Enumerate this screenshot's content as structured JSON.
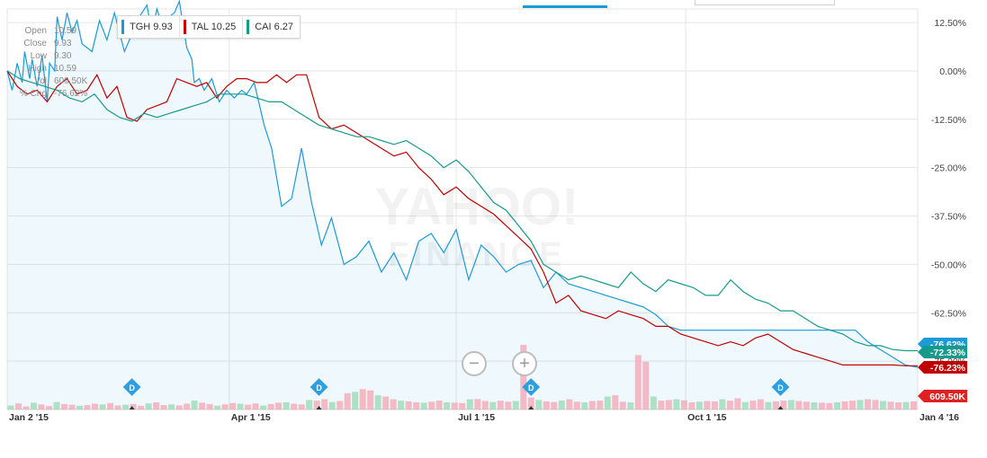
{
  "legend": [
    {
      "label": "TGH 9.93",
      "color": "#1a9bd7"
    },
    {
      "label": "TAL 10.25",
      "color": "#c00000"
    },
    {
      "label": "CAI 6.27",
      "color": "#159a8c"
    }
  ],
  "ohlc": [
    {
      "k": "Open",
      "v": "10.59"
    },
    {
      "k": "Close",
      "v": "9.93"
    },
    {
      "k": "Low",
      "v": "9.30"
    },
    {
      "k": "High",
      "v": "10.59"
    },
    {
      "k": "Vol",
      "v": "609.50K"
    },
    {
      "k": "% Chg",
      "v": "-76.62%"
    }
  ],
  "watermark": {
    "line1": "YAHOO!",
    "line2": "FINANCE"
  },
  "zoom": {
    "out": "−",
    "in": "+"
  },
  "chart_data": {
    "type": "line",
    "y_axis_labels": [
      "12.50%",
      "0.00%",
      "-12.50%",
      "-25.00%",
      "-37.50%",
      "-50.00%",
      "-62.50%",
      "-75.00%"
    ],
    "ylim": [
      -87.5,
      16
    ],
    "x_tick_labels": [
      "Jan 2 '15",
      "Apr 1 '15",
      "Jul 1 '15",
      "Oct 1 '15",
      "Jan 4 '16"
    ],
    "grid": true,
    "end_labels": [
      {
        "text": "-76.62%",
        "color": "#1a9bd7"
      },
      {
        "text": "-72.33%",
        "color": "#159a8c"
      },
      {
        "text": "-76.23%",
        "color": "#c00000"
      },
      {
        "text": "609.50K",
        "color": "#e02020"
      }
    ],
    "dividend_markers": [
      "D",
      "D",
      "D",
      "D"
    ],
    "series": [
      {
        "name": "TGH",
        "color": "#1a9bd7",
        "x": [
          0.0,
          2,
          4,
          6,
          7,
          9,
          10,
          12,
          14,
          16,
          17,
          19,
          20,
          22,
          24,
          26,
          28,
          30,
          34,
          37,
          40,
          43,
          47,
          51,
          53,
          56,
          58,
          60,
          62,
          65,
          67,
          69,
          72,
          74,
          75,
          77,
          79,
          82,
          85,
          88,
          91,
          94,
          96,
          99,
          103,
          106,
          110,
          114,
          118,
          122,
          126,
          130,
          135,
          140,
          145,
          150,
          155,
          160,
          165,
          170,
          175,
          180,
          185,
          190,
          195,
          200,
          205,
          210,
          215,
          220,
          225,
          230,
          235,
          240,
          245,
          250,
          255,
          260,
          265,
          270,
          275,
          280,
          285,
          290,
          295,
          300,
          305,
          310,
          315,
          320,
          325,
          330,
          335,
          340,
          345,
          350,
          355,
          360,
          365
        ],
        "values": [
          0,
          -5,
          2,
          -3,
          5,
          -2,
          3,
          -4,
          4,
          -8,
          2,
          0,
          14,
          8,
          15,
          10,
          13,
          7,
          5,
          13,
          8,
          15,
          5,
          11,
          14,
          17,
          10,
          16,
          12,
          14,
          15,
          18,
          6,
          3,
          -3,
          -2,
          -5,
          -2,
          -8,
          -5,
          -7,
          -5,
          -6,
          -3,
          -14,
          -20,
          -35,
          -33,
          -20,
          -34,
          -45,
          -38,
          -50,
          -48,
          -44,
          -52,
          -47,
          -54,
          -44,
          -42,
          -47,
          -41,
          -54,
          -45,
          -48,
          -52,
          -50,
          -49,
          -56,
          -52,
          -55,
          -56,
          -57,
          -58,
          -59,
          -60,
          -61,
          -63,
          -66,
          -67,
          -67,
          -67,
          -67,
          -67,
          -67,
          -67,
          -67,
          -67,
          -67,
          -67,
          -67,
          -67,
          -67,
          -67,
          -70,
          -72,
          -74,
          -76,
          -76.6
        ]
      },
      {
        "name": "TAL",
        "color": "#c00000",
        "x": [
          0,
          4,
          8,
          12,
          16,
          20,
          24,
          28,
          32,
          36,
          40,
          44,
          48,
          52,
          56,
          60,
          64,
          68,
          72,
          76,
          80,
          84,
          88,
          92,
          96,
          100,
          104,
          108,
          112,
          116,
          120,
          125,
          130,
          135,
          140,
          145,
          150,
          155,
          160,
          165,
          170,
          175,
          180,
          185,
          190,
          195,
          200,
          205,
          210,
          215,
          220,
          225,
          230,
          235,
          240,
          245,
          250,
          255,
          260,
          265,
          270,
          275,
          280,
          285,
          290,
          295,
          300,
          305,
          310,
          315,
          320,
          325,
          330,
          335,
          340,
          345,
          350,
          355,
          360,
          365
        ],
        "values": [
          0,
          -4,
          -6,
          -5,
          -8,
          -4,
          -2,
          -6,
          -5,
          -1,
          -7,
          -4,
          -12,
          -13,
          -10,
          -9,
          -8,
          -2,
          -3,
          -4,
          -3,
          -7,
          -4,
          -2,
          -2,
          -3,
          -3,
          -1,
          -3,
          -1,
          -1,
          -12,
          -15,
          -14,
          -16,
          -18,
          -20,
          -22,
          -21,
          -25,
          -28,
          -32,
          -30,
          -33,
          -35,
          -37,
          -40,
          -43,
          -46,
          -52,
          -60,
          -58,
          -62,
          -63,
          -64,
          -62,
          -63,
          -64,
          -66,
          -66,
          -68,
          -69,
          -70,
          -71,
          -70,
          -71,
          -69,
          -68,
          -70,
          -72,
          -73,
          -74,
          -75,
          -76,
          -76,
          -76,
          -76,
          -76,
          -76.2,
          -76.2
        ]
      },
      {
        "name": "CAI",
        "color": "#159a8c",
        "x": [
          0,
          5,
          10,
          15,
          20,
          25,
          30,
          35,
          40,
          45,
          50,
          55,
          60,
          65,
          70,
          75,
          80,
          85,
          90,
          95,
          100,
          105,
          110,
          115,
          120,
          125,
          130,
          135,
          140,
          145,
          150,
          155,
          160,
          165,
          170,
          175,
          180,
          185,
          190,
          195,
          200,
          205,
          210,
          215,
          220,
          225,
          230,
          235,
          240,
          245,
          250,
          255,
          260,
          265,
          270,
          275,
          280,
          285,
          290,
          295,
          300,
          305,
          310,
          315,
          320,
          325,
          330,
          335,
          340,
          345,
          350,
          355,
          360,
          365
        ],
        "values": [
          0,
          -2,
          -3,
          -4,
          -5,
          -7,
          -8,
          -6,
          -10,
          -12,
          -13,
          -11,
          -12,
          -11,
          -10,
          -9,
          -8,
          -6,
          -6,
          -6,
          -7,
          -8,
          -8,
          -10,
          -12,
          -14,
          -15,
          -16,
          -17,
          -17,
          -18,
          -19,
          -18,
          -20,
          -22,
          -25,
          -23,
          -26,
          -30,
          -34,
          -36,
          -40,
          -44,
          -50,
          -52,
          -54,
          -53,
          -54,
          -55,
          -56,
          -52,
          -55,
          -57,
          -54,
          -55,
          -56,
          -58,
          -58,
          -54,
          -57,
          -59,
          -60,
          -62,
          -62,
          -64,
          -66,
          -67,
          -68,
          -70,
          -71,
          -71,
          -72,
          -72.3,
          -72.3
        ]
      }
    ],
    "volume": [
      120,
      180,
      90,
      200,
      150,
      100,
      220,
      160,
      140,
      110,
      130,
      170,
      150,
      190,
      120,
      140,
      160,
      110,
      180,
      210,
      130,
      150,
      120,
      170,
      260,
      200,
      160,
      110,
      150,
      190,
      170,
      140,
      180,
      120,
      160,
      200,
      210,
      170,
      150,
      280,
      260,
      300,
      220,
      250,
      480,
      520,
      600,
      560,
      420,
      380,
      300,
      260,
      240,
      210,
      200,
      230,
      260,
      210,
      200,
      190,
      300,
      310,
      250,
      220,
      260,
      230,
      250,
      1900,
      350,
      280,
      240,
      220,
      260,
      300,
      230,
      210,
      250,
      260,
      380,
      420,
      230,
      210,
      1600,
      1400,
      380,
      260,
      280,
      300,
      270,
      210,
      230,
      250,
      240,
      300,
      260,
      330,
      220,
      260,
      300,
      220,
      240,
      260,
      280,
      250,
      230,
      210,
      200,
      190,
      210,
      240,
      260,
      280,
      300,
      280,
      250,
      230,
      210,
      220,
      240
    ]
  }
}
